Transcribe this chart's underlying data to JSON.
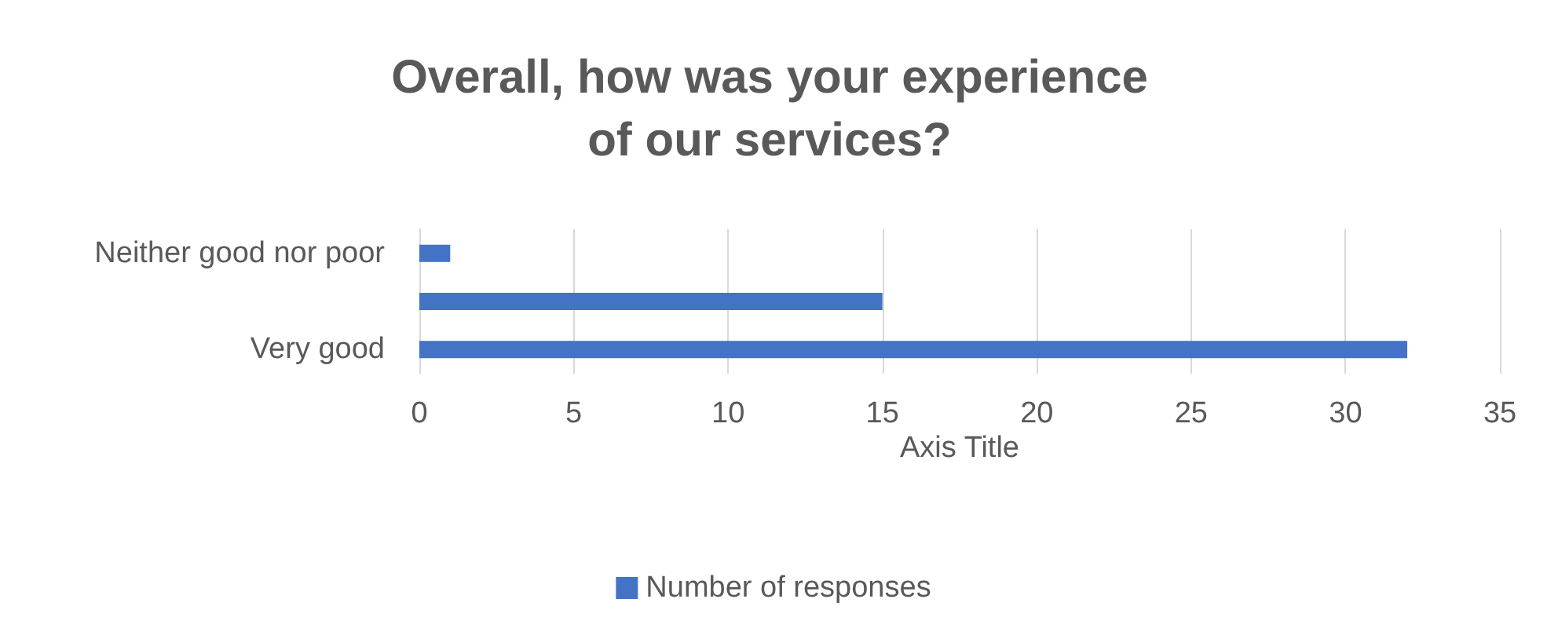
{
  "chart_data": {
    "type": "bar",
    "orientation": "horizontal",
    "title": "Overall, how was your experience of our services?",
    "categories": [
      "Neither good nor poor",
      null,
      "Very good"
    ],
    "series": [
      {
        "name": "Number of responses",
        "color": "#4472c4",
        "values": [
          1,
          15,
          32
        ]
      }
    ],
    "xlabel": "Axis Title",
    "xlim": [
      0,
      35
    ],
    "xticks": [
      0,
      5,
      10,
      15,
      20,
      25,
      30,
      35
    ],
    "grid": "x",
    "legend": "bottom"
  }
}
